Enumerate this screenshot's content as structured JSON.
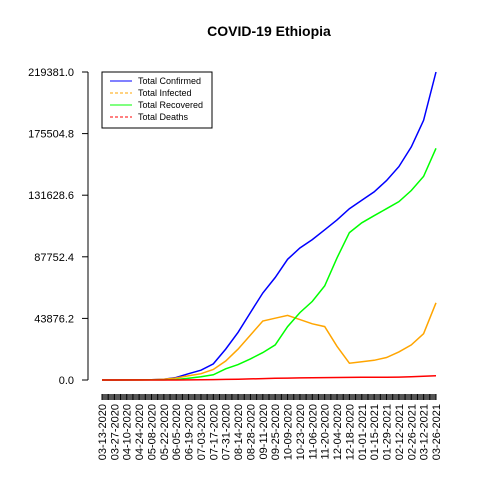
{
  "chart_data": {
    "type": "line",
    "title": "COVID-19 Ethiopia",
    "xlabel": "",
    "ylabel": "",
    "ylim": [
      0,
      219381.0
    ],
    "yticks": [
      "0.0",
      "43876.2",
      "87752.4",
      "131628.6",
      "175504.8",
      "219381.0"
    ],
    "ytick_values": [
      0,
      43876.2,
      87752.4,
      131628.6,
      175504.8,
      219381.0
    ],
    "xticks": [
      "03-13-2020",
      "03-27-2020",
      "04-10-2020",
      "04-24-2020",
      "05-08-2020",
      "05-22-2020",
      "06-05-2020",
      "06-19-2020",
      "07-03-2020",
      "07-17-2020",
      "07-31-2020",
      "08-14-2020",
      "08-28-2020",
      "09-11-2020",
      "09-25-2020",
      "10-09-2020",
      "10-23-2020",
      "11-06-2020",
      "11-20-2020",
      "12-04-2020",
      "12-18-2020",
      "01-01-2021",
      "01-15-2021",
      "01-29-2021",
      "02-12-2021",
      "02-26-2021",
      "03-12-2021",
      "03-26-2021"
    ],
    "legend_position": "top-left",
    "grid": false,
    "series": [
      {
        "name": "Total Confirmed",
        "color": "#0000ff",
        "dash": "solid",
        "values": [
          0,
          25,
          80,
          120,
          200,
          600,
          1800,
          4500,
          7000,
          11500,
          22000,
          34000,
          48000,
          62000,
          73000,
          86000,
          94000,
          100000,
          107000,
          114000,
          122000,
          128000,
          134000,
          142000,
          152000,
          166000,
          185000,
          219381
        ]
      },
      {
        "name": "Total Infected",
        "color": "#ffa500",
        "dash": "dashed",
        "values": [
          0,
          15,
          60,
          90,
          150,
          500,
          1400,
          3000,
          4500,
          7500,
          13500,
          22000,
          32000,
          42000,
          44000,
          46000,
          43000,
          40000,
          38000,
          24000,
          12000,
          13000,
          14000,
          16000,
          20000,
          25000,
          33000,
          55000
        ]
      },
      {
        "name": "Total Recovered",
        "color": "#00ff00",
        "dash": "solid",
        "values": [
          0,
          5,
          15,
          25,
          40,
          80,
          350,
          1300,
          2300,
          3700,
          8000,
          11000,
          15000,
          19500,
          25000,
          38000,
          48000,
          56000,
          67000,
          87000,
          105000,
          112000,
          117000,
          122000,
          127000,
          135000,
          145000,
          165000
        ]
      },
      {
        "name": "Total Deaths",
        "color": "#ff0000",
        "dash": "dashed",
        "values": [
          0,
          0,
          3,
          5,
          7,
          10,
          30,
          90,
          150,
          250,
          400,
          600,
          800,
          1000,
          1200,
          1350,
          1500,
          1600,
          1700,
          1800,
          1850,
          1900,
          1950,
          2000,
          2100,
          2300,
          2600,
          3000
        ]
      }
    ]
  }
}
